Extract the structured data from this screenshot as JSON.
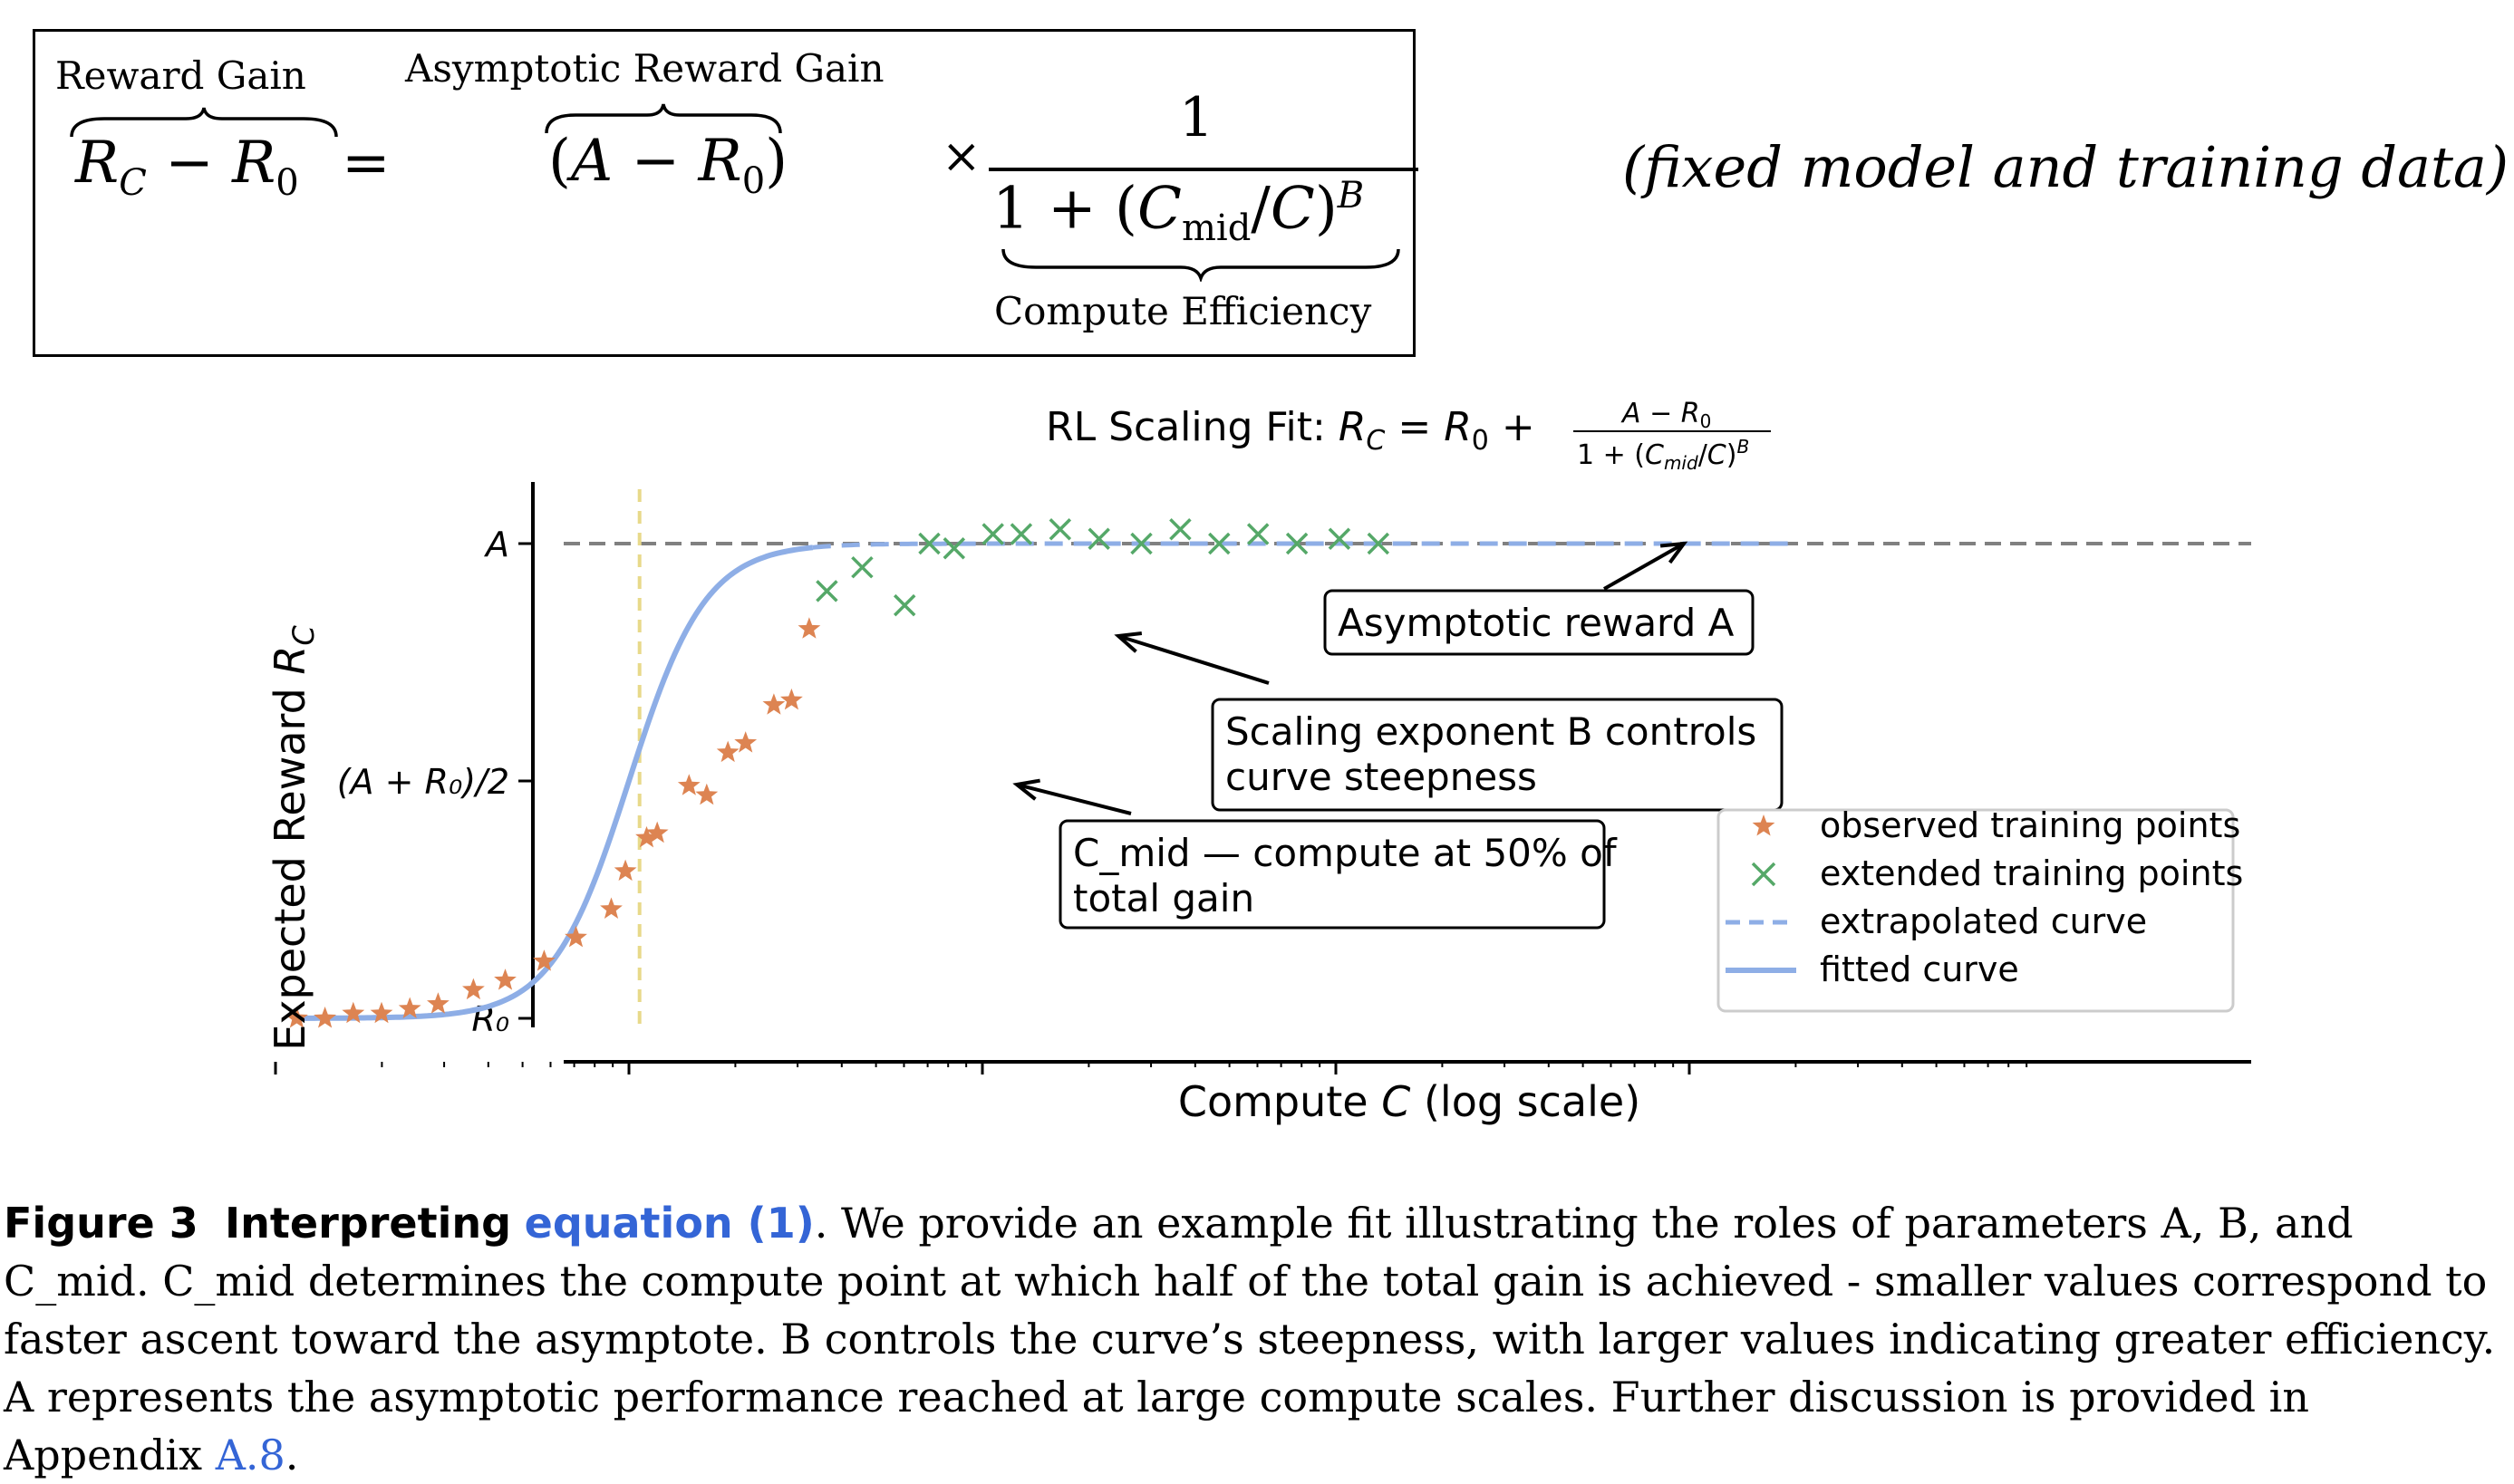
{
  "equation": {
    "reward_gain_label": "Reward Gain",
    "lhs": "R_C − R_0",
    "equals": "=",
    "asymptotic_label": "Asymptotic Reward Gain",
    "asymptotic_term": "(A − R_0)",
    "times": "×",
    "numerator": "1",
    "denominator": "1 + (C_mid/C)^B",
    "efficiency_label": "Compute Efficiency",
    "note": "(fixed model and training data)"
  },
  "chart_data": {
    "type": "scatter",
    "title": "RL Scaling Fit: R_C = R_0 + (A − R_0) / (1 + (C_mid/C)^B)",
    "xlabel": "Compute  C  (log scale)",
    "ylabel": "Expected Reward  R_C",
    "x_scale": "log",
    "ytick_labels": [
      "R₀",
      "(A + R₀)/2",
      "A"
    ],
    "yticks": [
      0,
      0.5,
      1
    ],
    "xlim_decades": [
      -1.0,
      3.6
    ],
    "ylim": [
      -0.08,
      1.12
    ],
    "C_mid_log10": 0.0,
    "B_log10": 4.0,
    "series": [
      {
        "name": "observed training points",
        "marker": "star",
        "color": "#dd8452",
        "x_log10": [
          -0.94,
          -0.86,
          -0.78,
          -0.7,
          -0.62,
          -0.54,
          -0.44,
          -0.35,
          -0.24,
          -0.15,
          -0.05,
          -0.01,
          0.05,
          0.08,
          0.17,
          0.22,
          0.28,
          0.33,
          0.41,
          0.46,
          0.51
        ],
        "y": [
          0.0,
          0.0,
          0.01,
          0.01,
          0.02,
          0.03,
          0.06,
          0.08,
          0.12,
          0.17,
          0.23,
          0.31,
          0.38,
          0.39,
          0.49,
          0.47,
          0.56,
          0.58,
          0.66,
          0.67,
          0.82
        ]
      },
      {
        "name": "extended training points",
        "marker": "x",
        "color": "#55a868",
        "x_log10": [
          0.56,
          0.66,
          0.78,
          0.85,
          0.92,
          1.03,
          1.11,
          1.22,
          1.33,
          1.45,
          1.56,
          1.67,
          1.78,
          1.89,
          2.01,
          2.12
        ],
        "y": [
          0.9,
          0.95,
          0.87,
          1.0,
          0.99,
          1.02,
          1.02,
          1.03,
          1.01,
          1.0,
          1.03,
          1.0,
          1.02,
          1.0,
          1.01,
          1.0
        ]
      },
      {
        "name": "extrapolated curve",
        "style": "dashed",
        "color": "#8eaee6"
      },
      {
        "name": "fitted curve",
        "style": "solid",
        "color": "#8eaee6"
      }
    ],
    "asymptote_line": {
      "y": 1,
      "style": "dashed",
      "color": "#808080"
    },
    "c_mid_line": {
      "style": "dashed",
      "color": "#e8d98a"
    },
    "annotations": [
      "Asymptotic reward A",
      "Scaling exponent B controls\n curve steepness",
      "C_mid — compute at 50% of\ntotal gain"
    ],
    "legend_position": "lower-right"
  },
  "caption": {
    "label": "Figure 3",
    "title": "Interpreting",
    "link": "equation (1)",
    "body": ". We provide an example fit illustrating the roles of parameters A, B, and C_mid. C_mid determines the compute point at which half of the total gain is achieved - smaller values correspond to faster ascent toward the asymptote. B controls the curve’s steepness, with larger values indicating greater efficiency. A represents the asymptotic performance reached at large compute scales. Further discussion is provided in Appendix ",
    "appendix_link": "A.8",
    "end": "."
  }
}
